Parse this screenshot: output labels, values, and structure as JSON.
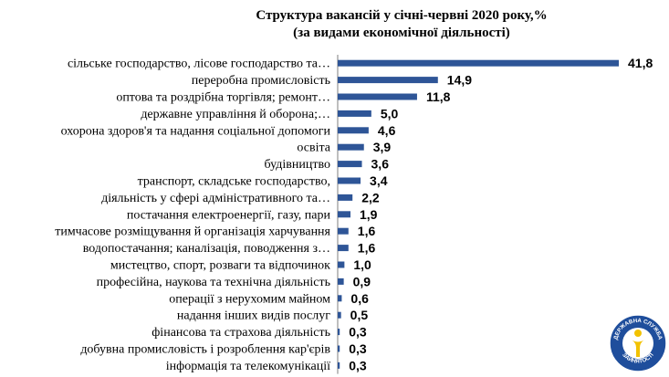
{
  "chart_data": {
    "type": "bar",
    "orientation": "horizontal",
    "title": [
      "Структура вакансій у  січні-червні  2020 року,%",
      "(за видами економічної діяльності)"
    ],
    "categories": [
      "сільське господарство, лісове господарство та…",
      "переробна промисловість",
      "оптова та роздрібна торгівля; ремонт…",
      "державне управління й оборона;…",
      "охорона здоров'я та надання соціальної допомоги",
      "освіта",
      "будівництво",
      "транспорт, складське господарство,",
      "діяльність у сфері адміністративного та…",
      "постачання електроенергії, газу, пари",
      "тимчасове розміщування й організація харчування",
      "водопостачання; каналізація, поводження з…",
      "мистецтво, спорт, розваги та відпочинок",
      "професійна, наукова та технічна діяльність",
      "операції з нерухомим майном",
      "надання інших видів послуг",
      "фінансова та страхова діяльність",
      "добувна промисловість і розроблення кар'єрів",
      "інформація та телекомунікації"
    ],
    "values": [
      41.8,
      14.9,
      11.8,
      5.0,
      4.6,
      3.9,
      3.6,
      3.4,
      2.2,
      1.9,
      1.6,
      1.6,
      1.0,
      0.9,
      0.6,
      0.5,
      0.3,
      0.3,
      0.3
    ],
    "value_labels": [
      "41,8",
      "14,9",
      "11,8",
      "5,0",
      "4,6",
      "3,9",
      "3,6",
      "3,4",
      "2,2",
      "1,9",
      "1,6",
      "1,6",
      "1,0",
      "0,9",
      "0,6",
      "0,5",
      "0,3",
      "0,3",
      "0,3"
    ],
    "bar_color": "#2E5597",
    "grid": false,
    "legend": "none"
  },
  "logo": {
    "top_text": "ДЕРЖАВНА СЛУЖБА",
    "bottom_text": "ЗАЙНЯТОСТІ",
    "ring_color": "#1F4E9C",
    "accent_color": "#F2C200"
  }
}
